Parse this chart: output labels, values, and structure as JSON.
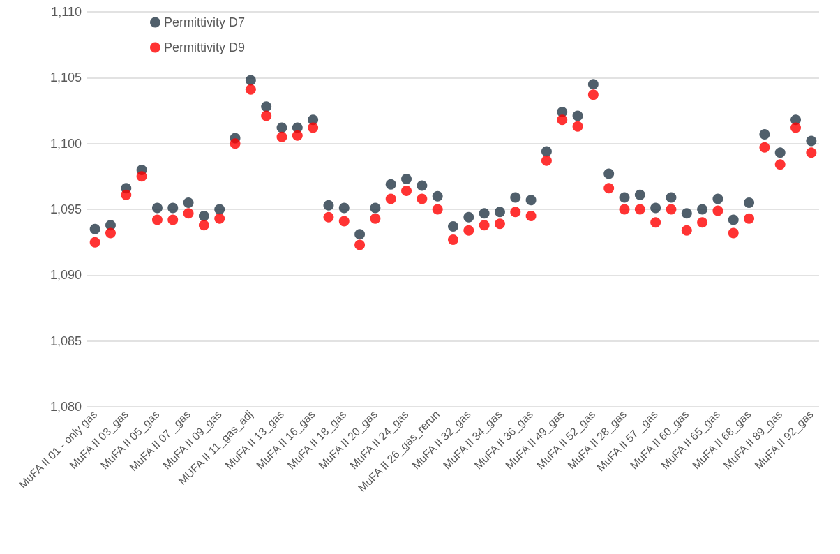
{
  "chart_data": {
    "type": "scatter",
    "categories": [
      "MuFA II 01 - only gas",
      null,
      "MuFA II 03_gas",
      null,
      "MuFA II 05_gas",
      null,
      "MuFA II 07 _gas",
      null,
      "MuFA II 09_gas",
      null,
      "MUFA II 11_gas_adj",
      null,
      "MuFA II 13_gas",
      null,
      "MuFA II 16_gas",
      null,
      "MuFA II 18_gas",
      null,
      "MuFA II 20_gas",
      null,
      "MuFA II 24_gas",
      null,
      "MuFA II 26_gas_rerun",
      null,
      "MuFA II 32_gas",
      null,
      "MuFA II 34_gas",
      null,
      "MuFA II 36_gas",
      null,
      "MuFA II 49_gas",
      null,
      "MuFA II 52_gas",
      null,
      "MuFA II 28_gas",
      null,
      "MuFA II 57 _gas",
      null,
      "MuFA II 60_gas",
      null,
      "MuFA II 65_gas",
      null,
      "MuFA II 68_gas",
      null,
      "MuFA II 89_gas",
      null,
      "MuFA II 92_gas"
    ],
    "series": [
      {
        "name": "Permittivity D7",
        "color": "#243746",
        "values": [
          1093.5,
          1093.8,
          1096.6,
          1098.0,
          1095.1,
          1095.1,
          1095.5,
          1094.5,
          1095.0,
          1100.4,
          1104.8,
          1102.8,
          1101.2,
          1101.2,
          1101.8,
          1095.3,
          1095.1,
          1093.1,
          1095.1,
          1096.9,
          1097.3,
          1096.8,
          1096.0,
          1093.7,
          1094.4,
          1094.7,
          1094.8,
          1095.9,
          1095.7,
          1099.4,
          1102.4,
          1102.1,
          1104.5,
          1097.7,
          1095.9,
          1096.1,
          1095.1,
          1095.9,
          1094.7,
          1095.0,
          1095.8,
          1094.2,
          1095.5,
          1100.7,
          1099.3,
          1101.8,
          1100.2
        ]
      },
      {
        "name": "Permittivity D9",
        "color": "#ff0000",
        "values": [
          1092.5,
          1093.2,
          1096.1,
          1097.5,
          1094.2,
          1094.2,
          1094.7,
          1093.8,
          1094.3,
          1100.0,
          1104.1,
          1102.1,
          1100.5,
          1100.6,
          1101.2,
          1094.4,
          1094.1,
          1092.3,
          1094.3,
          1095.8,
          1096.4,
          1095.8,
          1095.0,
          1092.7,
          1093.4,
          1093.8,
          1093.9,
          1094.8,
          1094.5,
          1098.7,
          1101.8,
          1101.3,
          1103.7,
          1096.6,
          1095.0,
          1095.0,
          1094.0,
          1095.0,
          1093.4,
          1094.0,
          1094.9,
          1093.2,
          1094.3,
          1099.7,
          1098.4,
          1101.2,
          1099.3
        ]
      }
    ],
    "ylim": [
      1080,
      1110
    ],
    "yticks": [
      {
        "value": 1080,
        "label": "1,080"
      },
      {
        "value": 1085,
        "label": "1,085"
      },
      {
        "value": 1090,
        "label": "1,090"
      },
      {
        "value": 1095,
        "label": "1,095"
      },
      {
        "value": 1100,
        "label": "1,100"
      },
      {
        "value": 1105,
        "label": "1,105"
      },
      {
        "value": 1110,
        "label": "1,110"
      }
    ],
    "grid": "y",
    "legend": "top left",
    "marker": "circle"
  }
}
